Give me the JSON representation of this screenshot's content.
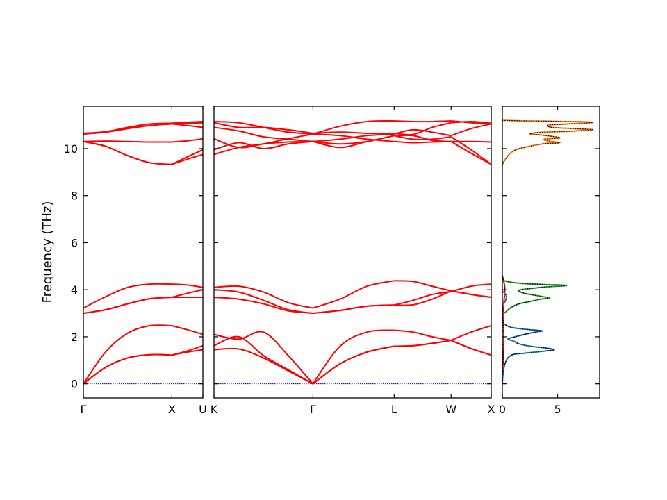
{
  "chart_data": {
    "type": "line",
    "title": "",
    "ylabel": "Frequency (THz)",
    "ylim": [
      -0.6,
      11.8
    ],
    "yticks": [
      0,
      2,
      4,
      6,
      8,
      10
    ],
    "ytick_labels": [
      "0",
      "2",
      "4",
      "6",
      "8",
      "10"
    ],
    "band_color": "#ff0000",
    "zero_line_color": "#0000cc",
    "band_panels": [
      {
        "segments": [
          {
            "from": "Γ",
            "to": "X",
            "length": 1.0,
            "bands": [
              [
                0,
                0.7,
                1.1,
                1.24,
                1.22
              ],
              [
                0,
                0.7,
                1.1,
                1.24,
                1.22
              ],
              [
                0,
                1.35,
                2.15,
                2.47,
                2.47
              ],
              [
                3.0,
                3.15,
                3.4,
                3.62,
                3.68
              ],
              [
                3.0,
                3.15,
                3.4,
                3.62,
                3.68
              ],
              [
                3.22,
                3.7,
                4.1,
                4.24,
                4.24
              ],
              [
                10.3,
                10.1,
                9.7,
                9.4,
                9.33
              ],
              [
                10.3,
                10.1,
                9.7,
                9.4,
                9.33
              ],
              [
                10.3,
                10.32,
                10.3,
                10.28,
                10.28
              ],
              [
                10.62,
                10.7,
                10.85,
                10.98,
                11.05
              ],
              [
                10.62,
                10.7,
                10.85,
                10.98,
                11.05
              ],
              [
                10.65,
                10.72,
                10.9,
                11.05,
                11.08
              ]
            ]
          },
          {
            "from": "X",
            "to": "U",
            "length": 0.35,
            "bands": [
              [
                1.22,
                1.35,
                1.45
              ],
              [
                1.22,
                1.4,
                1.62
              ],
              [
                2.47,
                2.3,
                2.1
              ],
              [
                3.68,
                3.68,
                3.68
              ],
              [
                3.68,
                3.85,
                4.0
              ],
              [
                4.24,
                4.2,
                4.1
              ],
              [
                9.33,
                9.55,
                9.75
              ],
              [
                9.33,
                9.65,
                9.95
              ],
              [
                10.28,
                10.33,
                10.42
              ],
              [
                11.05,
                10.98,
                10.9
              ],
              [
                11.05,
                11.08,
                11.1
              ],
              [
                11.08,
                11.12,
                11.15
              ]
            ]
          }
        ]
      },
      {
        "segments": [
          {
            "from": "K",
            "to": "Γ",
            "length": 1.06,
            "bands": [
              [
                1.45,
                1.48,
                1.1,
                0.55,
                0
              ],
              [
                1.62,
                2.0,
                1.2,
                0.6,
                0
              ],
              [
                2.1,
                1.9,
                2.2,
                1.2,
                0
              ],
              [
                3.68,
                3.6,
                3.4,
                3.1,
                3.0
              ],
              [
                4.0,
                3.9,
                3.55,
                3.15,
                3.0
              ],
              [
                4.1,
                4.15,
                3.9,
                3.45,
                3.22
              ],
              [
                9.75,
                10.05,
                10.2,
                10.28,
                10.3
              ],
              [
                9.95,
                10.25,
                10.0,
                10.2,
                10.3
              ],
              [
                10.42,
                10.05,
                10.2,
                10.42,
                10.62
              ],
              [
                10.9,
                10.75,
                10.5,
                10.4,
                10.3
              ],
              [
                11.1,
                10.9,
                10.9,
                10.8,
                10.65
              ],
              [
                11.15,
                11.1,
                10.9,
                10.7,
                10.62
              ]
            ]
          },
          {
            "from": "Γ",
            "to": "L",
            "length": 0.87,
            "bands": [
              [
                0,
                0.85,
                1.35,
                1.6
              ],
              [
                0,
                0.85,
                1.35,
                1.6
              ],
              [
                0,
                1.6,
                2.2,
                2.28
              ],
              [
                3.0,
                3.12,
                3.3,
                3.35
              ],
              [
                3.0,
                3.12,
                3.3,
                3.35
              ],
              [
                3.22,
                3.6,
                4.15,
                4.38
              ],
              [
                10.3,
                10.2,
                10.3,
                10.55
              ],
              [
                10.3,
                10.05,
                10.3,
                10.55
              ],
              [
                10.62,
                10.55,
                10.4,
                10.3
              ],
              [
                10.3,
                10.4,
                10.55,
                10.62
              ],
              [
                10.65,
                10.7,
                10.65,
                10.65
              ],
              [
                10.62,
                10.95,
                11.15,
                11.18
              ]
            ]
          },
          {
            "from": "L",
            "to": "W",
            "length": 0.61,
            "bands": [
              [
                1.6,
                1.62,
                1.72,
                1.85
              ],
              [
                1.6,
                1.62,
                1.72,
                1.85
              ],
              [
                2.28,
                2.2,
                2.0,
                1.85
              ],
              [
                3.35,
                3.36,
                3.6,
                3.95
              ],
              [
                3.35,
                3.55,
                3.8,
                3.92
              ],
              [
                4.38,
                4.35,
                4.15,
                3.95
              ],
              [
                10.55,
                10.55,
                10.35,
                10.3
              ],
              [
                10.55,
                10.4,
                10.4,
                10.5
              ],
              [
                10.3,
                10.25,
                10.28,
                10.3
              ],
              [
                10.62,
                10.8,
                10.7,
                10.55
              ],
              [
                10.65,
                10.6,
                10.9,
                11.1
              ],
              [
                11.18,
                11.15,
                11.15,
                11.18
              ]
            ]
          },
          {
            "from": "W",
            "to": "X",
            "length": 0.43,
            "bands": [
              [
                1.85,
                1.5,
                1.22
              ],
              [
                1.85,
                1.5,
                1.22
              ],
              [
                1.85,
                2.2,
                2.47
              ],
              [
                3.95,
                3.8,
                3.68
              ],
              [
                3.92,
                4.15,
                4.24
              ],
              [
                3.95,
                3.8,
                3.68
              ],
              [
                10.3,
                9.8,
                9.33
              ],
              [
                10.5,
                9.95,
                9.33
              ],
              [
                10.3,
                10.3,
                10.28
              ],
              [
                10.55,
                10.85,
                11.05
              ],
              [
                11.1,
                11.15,
                11.08
              ],
              [
                11.18,
                11.1,
                11.05
              ]
            ]
          }
        ]
      }
    ],
    "band_xtick_labels": [
      "Γ",
      "X",
      "U",
      "K",
      "Γ",
      "L",
      "W",
      "X"
    ],
    "dos": {
      "xlim": [
        0,
        8.8
      ],
      "xticks": [
        0,
        5
      ],
      "xtick_labels": [
        "0",
        "5"
      ],
      "series": [
        {
          "color": "#1f77b4",
          "points": [
            [
              0,
              0
            ],
            [
              0.05,
              0.35
            ],
            [
              0.2,
              0.8
            ],
            [
              0.5,
              1.1
            ],
            [
              1.0,
              1.25
            ],
            [
              2.0,
              1.3
            ],
            [
              3.0,
              1.35
            ],
            [
              4.0,
              1.4
            ],
            [
              4.7,
              1.45
            ],
            [
              4.0,
              1.52
            ],
            [
              2.5,
              1.6
            ],
            [
              1.5,
              1.7
            ],
            [
              1.0,
              1.82
            ],
            [
              0.5,
              1.9
            ],
            [
              1.0,
              1.98
            ],
            [
              2.0,
              2.1
            ],
            [
              3.0,
              2.2
            ],
            [
              3.6,
              2.25
            ],
            [
              2.5,
              2.3
            ],
            [
              1.5,
              2.35
            ],
            [
              0.8,
              2.4
            ],
            [
              0.3,
              2.5
            ],
            [
              0,
              2.6
            ]
          ]
        },
        {
          "color": "#2ca02c",
          "points": [
            [
              0,
              2.95
            ],
            [
              0.3,
              3.05
            ],
            [
              0.8,
              3.25
            ],
            [
              1.5,
              3.4
            ],
            [
              2.5,
              3.5
            ],
            [
              3.5,
              3.6
            ],
            [
              4.3,
              3.65
            ],
            [
              3.5,
              3.72
            ],
            [
              2.0,
              3.85
            ],
            [
              1.5,
              3.98
            ],
            [
              2.5,
              4.05
            ],
            [
              4.0,
              4.12
            ],
            [
              5.8,
              4.18
            ],
            [
              4.0,
              4.22
            ],
            [
              2.0,
              4.26
            ],
            [
              0.8,
              4.32
            ],
            [
              0.2,
              4.38
            ],
            [
              0,
              4.45
            ]
          ]
        },
        {
          "color": "#ff7f0e",
          "points": [
            [
              0,
              9.3
            ],
            [
              0.2,
              9.5
            ],
            [
              0.6,
              9.75
            ],
            [
              1.2,
              9.95
            ],
            [
              2.0,
              10.05
            ],
            [
              3.0,
              10.15
            ],
            [
              4.0,
              10.22
            ],
            [
              5.2,
              10.25
            ],
            [
              4.2,
              10.32
            ],
            [
              3.8,
              10.4
            ],
            [
              5.2,
              10.45
            ],
            [
              4.5,
              10.52
            ],
            [
              3.5,
              10.58
            ],
            [
              2.5,
              10.62
            ],
            [
              3.2,
              10.68
            ],
            [
              5.0,
              10.72
            ],
            [
              6.5,
              10.75
            ],
            [
              8.2,
              10.8
            ],
            [
              6.5,
              10.85
            ],
            [
              4.5,
              10.9
            ],
            [
              4.2,
              11.0
            ],
            [
              6.0,
              11.05
            ],
            [
              8.2,
              11.12
            ],
            [
              5.0,
              11.16
            ],
            [
              2.0,
              11.18
            ],
            [
              0,
              11.2
            ]
          ]
        },
        {
          "color": "#d62728",
          "points": [
            [
              0,
              0.5
            ],
            [
              0.08,
              1.0
            ],
            [
              0.1,
              1.5
            ],
            [
              0.12,
              2.0
            ],
            [
              0.1,
              2.5
            ],
            [
              0.05,
              2.9
            ],
            [
              0.1,
              3.3
            ],
            [
              0.18,
              3.7
            ],
            [
              0.22,
              4.1
            ],
            [
              0.1,
              4.4
            ],
            [
              0,
              4.6
            ]
          ]
        },
        {
          "color": "#9467bd",
          "points": [
            [
              0,
              3.3
            ],
            [
              0.25,
              3.5
            ],
            [
              0.35,
              3.65
            ],
            [
              0.3,
              3.8
            ],
            [
              0,
              3.95
            ]
          ]
        }
      ]
    }
  }
}
